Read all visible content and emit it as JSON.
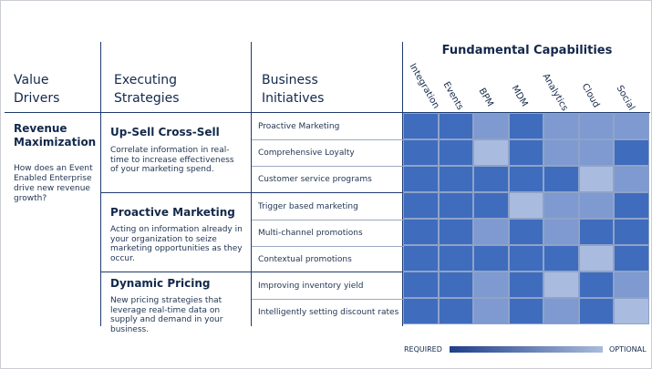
{
  "headers": {
    "value_drivers": "Value Drivers",
    "executing_strategies": "Executing Strategies",
    "business_initiatives": "Business Initiatives",
    "fundamental_capabilities": "Fundamental Capabilities"
  },
  "value_driver": {
    "title": "Revenue Maximization",
    "question": "How does an Event Enabled Enterprise drive new revenue growth?"
  },
  "strategies": [
    {
      "title": "Up-Sell Cross-Sell",
      "desc": "Correlate information in real-time to increase effectiveness of your marketing spend."
    },
    {
      "title": "Proactive Marketing",
      "desc": "Acting on information already in your organization to seize marketing opportunities as they occur."
    },
    {
      "title": "Dynamic Pricing",
      "desc": "New pricing strategies that leverage real-time data on supply and demand in your business."
    }
  ],
  "initiatives": [
    "Proactive Marketing",
    "Comprehensive Loyalty",
    "Customer service programs",
    "Trigger based marketing",
    "Multi-channel promotions",
    "Contextual promotions",
    "Improving inventory yield",
    "Intelligently setting discount rates"
  ],
  "capabilities": [
    "Integration",
    "Events",
    "BPM",
    "MDM",
    "Analytics",
    "Cloud",
    "Social"
  ],
  "matrix_levels": [
    [
      1,
      1,
      3,
      1,
      3,
      3,
      3
    ],
    [
      1,
      1,
      4,
      1,
      3,
      3,
      1
    ],
    [
      1,
      1,
      1,
      1,
      1,
      4,
      3
    ],
    [
      1,
      1,
      1,
      4,
      3,
      3,
      1
    ],
    [
      1,
      1,
      3,
      1,
      3,
      1,
      1
    ],
    [
      1,
      1,
      1,
      1,
      1,
      4,
      1
    ],
    [
      1,
      1,
      3,
      1,
      4,
      1,
      3
    ],
    [
      1,
      1,
      3,
      1,
      3,
      1,
      4
    ]
  ],
  "level_colors": [
    "#3f6cbd",
    "#4e76c0",
    "#7e9ad0",
    "#a9bbdf"
  ],
  "legend": {
    "required": "REQUIRED",
    "optional": "OPTIONAL"
  }
}
